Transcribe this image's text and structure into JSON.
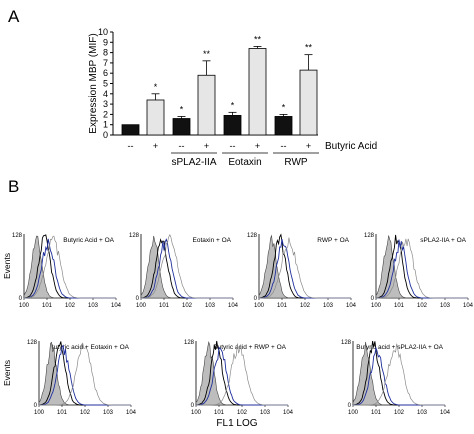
{
  "figure": {
    "panel_a_letter": "A",
    "panel_b_letter": "B",
    "histogram_xlabel": "FL1 LOG",
    "histogram_ylabel": "Events"
  },
  "chart_data": [
    {
      "type": "bar",
      "panel": "A",
      "ylabel": "Expression MBP (MIF)",
      "ylim": [
        0,
        10
      ],
      "yticks": [
        "0",
        "1",
        "2",
        "3",
        "4",
        "5",
        "6",
        "7",
        "8",
        "9",
        "10"
      ],
      "treatment_label": "Butyric Acid",
      "condition_symbols": [
        "--",
        "+",
        "--",
        "+",
        "--",
        "+",
        "--",
        "+"
      ],
      "groups": [
        {
          "label": "",
          "bars": [
            {
              "value": 1.0,
              "error": 0.0,
              "fill": "#111111",
              "annotation": ""
            },
            {
              "value": 3.4,
              "error": 0.6,
              "fill": "#e6e6e6",
              "annotation": "*"
            }
          ]
        },
        {
          "label": "sPLA2-IIA",
          "bars": [
            {
              "value": 1.6,
              "error": 0.2,
              "fill": "#111111",
              "annotation": "*"
            },
            {
              "value": 5.8,
              "error": 1.4,
              "fill": "#e6e6e6",
              "annotation": "**"
            }
          ]
        },
        {
          "label": "Eotaxin",
          "bars": [
            {
              "value": 1.9,
              "error": 0.3,
              "fill": "#111111",
              "annotation": "*"
            },
            {
              "value": 8.4,
              "error": 0.2,
              "fill": "#e6e6e6",
              "annotation": "**"
            }
          ]
        },
        {
          "label": "RWP",
          "bars": [
            {
              "value": 1.8,
              "error": 0.2,
              "fill": "#111111",
              "annotation": "*"
            },
            {
              "value": 6.3,
              "error": 1.5,
              "fill": "#e6e6e6",
              "annotation": "**"
            }
          ]
        }
      ]
    },
    {
      "type": "area",
      "panel": "B",
      "x_scale": "log",
      "xlim": [
        1,
        10000
      ],
      "xticks": [
        "100",
        "101",
        "102",
        "103",
        "104"
      ],
      "ylim": [
        0,
        128
      ],
      "yticks": [
        "0",
        "128"
      ],
      "xlabel": "FL1 LOG",
      "ylabel": "Events",
      "histogram_peaks_log10": {
        "filled": 0.55,
        "black": 0.9,
        "blue": 1.05,
        "gray": 1.55
      },
      "panels": [
        {
          "title": "Butyric Acid + OA",
          "gray_peak_log10": 1.25
        },
        {
          "title": "Eotaxin + OA",
          "gray_peak_log10": 1.25
        },
        {
          "title": "RWP + OA",
          "gray_peak_log10": 1.3
        },
        {
          "title": "sPLA2-IIA + OA",
          "gray_peak_log10": 1.3
        },
        {
          "title": "Butyric acid + Eotaxin + OA",
          "gray_peak_log10": 1.95
        },
        {
          "title": "Butyric acid + RWP + OA",
          "gray_peak_log10": 1.85
        },
        {
          "title": "Butyric acid + sPLA2-IIA + OA",
          "gray_peak_log10": 1.85
        }
      ]
    }
  ]
}
